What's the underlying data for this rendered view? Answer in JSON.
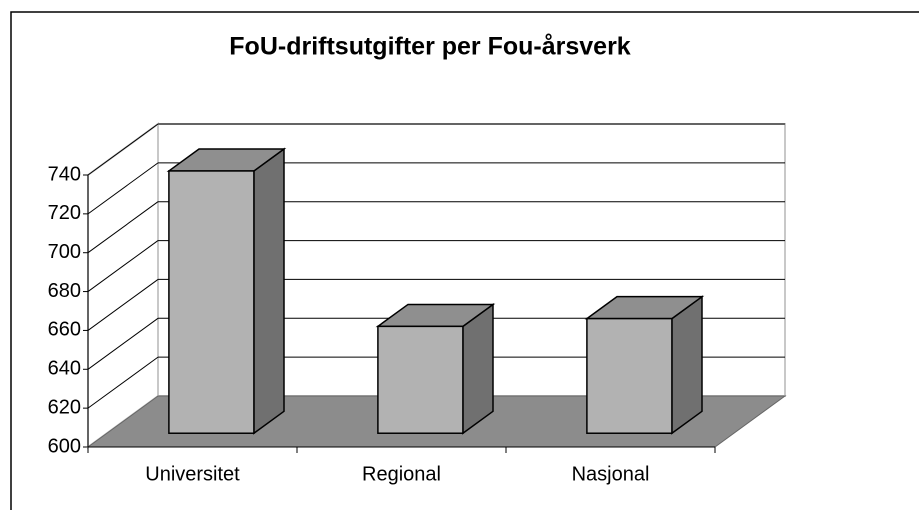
{
  "chart_data": {
    "type": "bar3d",
    "title": "FoU-driftsutgifter per Fou-årsverk",
    "categories": [
      "Universitet",
      "Regional",
      "Nasjonal"
    ],
    "values": [
      735,
      655,
      659
    ],
    "color": "#b2b2b2",
    "ylim": [
      600,
      740
    ],
    "yticks": [
      600,
      620,
      640,
      660,
      680,
      700,
      720,
      740
    ],
    "grid": true
  }
}
